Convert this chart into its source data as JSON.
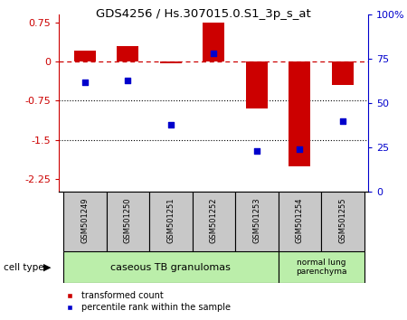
{
  "title": "GDS4256 / Hs.307015.0.S1_3p_s_at",
  "samples": [
    "GSM501249",
    "GSM501250",
    "GSM501251",
    "GSM501252",
    "GSM501253",
    "GSM501254",
    "GSM501255"
  ],
  "transformed_count": [
    0.2,
    0.3,
    -0.03,
    0.75,
    -0.9,
    -2.0,
    -0.45
  ],
  "percentile_rank": [
    62,
    63,
    38,
    78,
    23,
    24,
    40
  ],
  "group1_count": 5,
  "group2_count": 2,
  "group1_label": "caseous TB granulomas",
  "group2_label": "normal lung\nparenchyma",
  "cell_type_label": "cell type",
  "legend1_label": "transformed count",
  "legend2_label": "percentile rank within the sample",
  "bar_color": "#cc0000",
  "dot_color": "#0000cc",
  "ylim_left": [
    -2.5,
    0.9
  ],
  "yticks_left": [
    0.75,
    0.0,
    -0.75,
    -1.5,
    -2.25
  ],
  "yticks_right": [
    100,
    75,
    50,
    25,
    0
  ],
  "hline_y": 0.0,
  "dotted_lines": [
    -0.75,
    -1.5
  ],
  "right_axis_color": "#0000cc",
  "left_axis_color": "#cc0000",
  "group1_color": "#bbeeaa",
  "group2_color": "#bbeeaa",
  "sample_box_color": "#c8c8c8",
  "dashed_line_color": "#cc0000",
  "bar_width": 0.5
}
